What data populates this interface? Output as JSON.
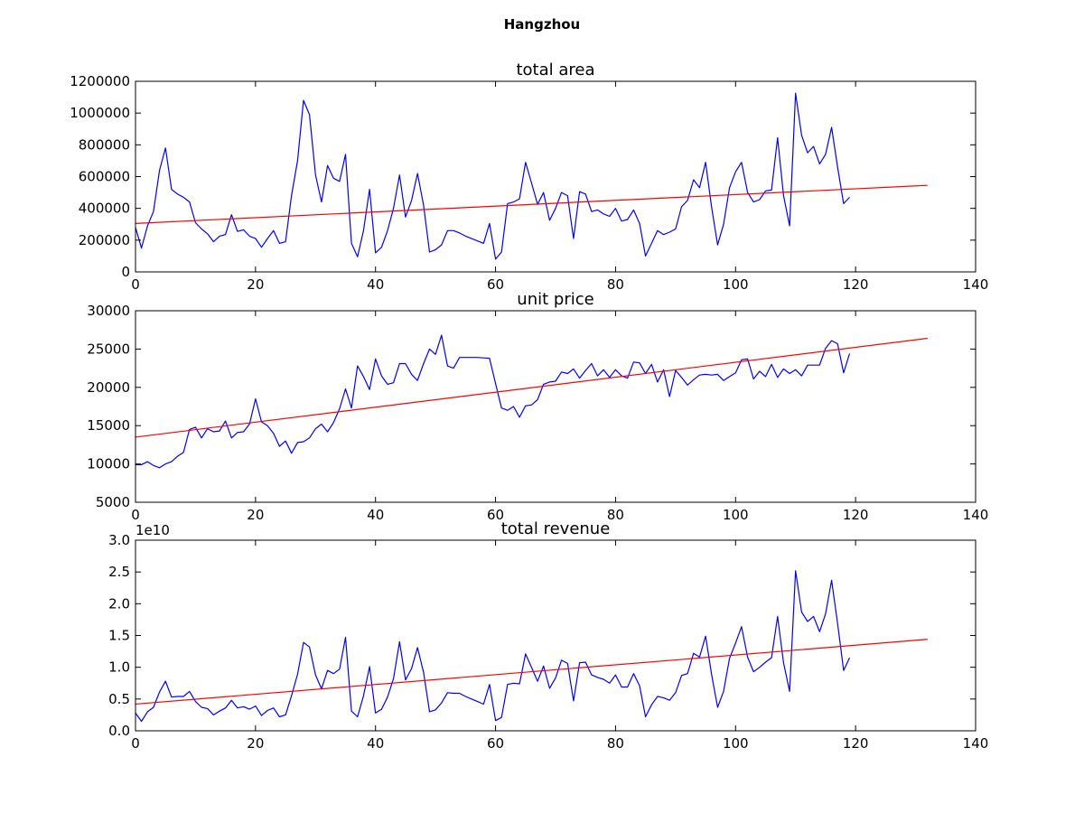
{
  "suptitle": "Hangzhou",
  "colors": {
    "series": "#0000ff",
    "trend": "#ff0000",
    "axes": "#000000"
  },
  "chart_data": [
    {
      "type": "line",
      "title": "total area",
      "xlabel": "",
      "ylabel": "",
      "xlim": [
        0,
        140
      ],
      "ylim": [
        0,
        1200000
      ],
      "xticks": [
        0,
        20,
        40,
        60,
        80,
        100,
        120,
        140
      ],
      "xtick_labels": [
        "0",
        "20",
        "40",
        "60",
        "80",
        "100",
        "120",
        "140"
      ],
      "yticks": [
        0,
        200000,
        400000,
        600000,
        800000,
        1000000,
        1200000
      ],
      "ytick_labels": [
        "0",
        "200000",
        "400000",
        "600000",
        "800000",
        "1000000",
        "1200000"
      ],
      "offset_label": "",
      "grid": false,
      "series": [
        {
          "values": [
            280000,
            150000,
            290000,
            380000,
            640000,
            780000,
            520000,
            490000,
            470000,
            440000,
            310000,
            270000,
            240000,
            190000,
            225000,
            235000,
            360000,
            255000,
            265000,
            225000,
            210000,
            155000,
            210000,
            260000,
            180000,
            190000,
            480000,
            700000,
            1080000,
            990000,
            610000,
            440000,
            670000,
            590000,
            570000,
            740000,
            180000,
            95000,
            260000,
            520000,
            120000,
            155000,
            260000,
            400000,
            610000,
            345000,
            450000,
            620000,
            420000,
            125000,
            140000,
            170000,
            260000,
            260000,
            245000,
            225000,
            210000,
            195000,
            180000,
            305000,
            80000,
            125000,
            430000,
            440000,
            460000,
            690000,
            560000,
            425000,
            500000,
            325000,
            400000,
            500000,
            480000,
            210000,
            505000,
            490000,
            380000,
            390000,
            365000,
            350000,
            400000,
            320000,
            330000,
            390000,
            305000,
            100000,
            180000,
            260000,
            235000,
            250000,
            270000,
            410000,
            450000,
            580000,
            530000,
            690000,
            410000,
            170000,
            300000,
            530000,
            630000,
            690000,
            500000,
            440000,
            455000,
            510000,
            515000,
            845000,
            480000,
            290000,
            1125000,
            860000,
            750000,
            790000,
            680000,
            740000,
            910000,
            660000,
            430000,
            470000
          ]
        }
      ],
      "trend": {
        "x": [
          0,
          132
        ],
        "y": [
          305000,
          545000
        ]
      }
    },
    {
      "type": "line",
      "title": "unit price",
      "xlabel": "",
      "ylabel": "",
      "xlim": [
        0,
        140
      ],
      "ylim": [
        5000,
        30000
      ],
      "xticks": [
        0,
        20,
        40,
        60,
        80,
        100,
        120,
        140
      ],
      "xtick_labels": [
        "0",
        "20",
        "40",
        "60",
        "80",
        "100",
        "120",
        "140"
      ],
      "yticks": [
        5000,
        10000,
        15000,
        20000,
        25000,
        30000
      ],
      "ytick_labels": [
        "5000",
        "10000",
        "15000",
        "20000",
        "25000",
        "30000"
      ],
      "offset_label": "",
      "grid": false,
      "series": [
        {
          "values": [
            9900,
            9900,
            10300,
            9800,
            9500,
            10000,
            10300,
            11000,
            11500,
            14500,
            14800,
            13400,
            14600,
            14200,
            14300,
            15600,
            13400,
            14100,
            14200,
            15200,
            18500,
            15500,
            15000,
            14000,
            12300,
            13000,
            11400,
            12800,
            12900,
            13400,
            14600,
            15200,
            14200,
            15400,
            17200,
            19800,
            17300,
            22800,
            21400,
            19700,
            23700,
            21500,
            20400,
            20600,
            23100,
            23100,
            21700,
            20900,
            23100,
            25000,
            24300,
            26800,
            22800,
            22500,
            23900,
            23900,
            23900,
            23900,
            23850,
            23800,
            20500,
            17300,
            17000,
            17500,
            16100,
            17600,
            17700,
            18400,
            20400,
            20700,
            20800,
            22000,
            21800,
            22400,
            21200,
            22200,
            23100,
            21500,
            22300,
            21300,
            22300,
            21500,
            21200,
            23300,
            23200,
            21800,
            23000,
            20700,
            22300,
            18800,
            22200,
            21300,
            20300,
            21000,
            21600,
            21700,
            21600,
            21700,
            20900,
            21400,
            21900,
            23600,
            23700,
            21100,
            22100,
            21400,
            23000,
            21300,
            22400,
            21800,
            22300,
            21500,
            22900,
            22900,
            22900,
            25100,
            26100,
            25700,
            21900,
            24400
          ]
        }
      ],
      "trend": {
        "x": [
          0,
          132
        ],
        "y": [
          13500,
          26400
        ]
      }
    },
    {
      "type": "line",
      "title": "total revenue",
      "xlabel": "",
      "ylabel": "",
      "xlim": [
        0,
        140
      ],
      "ylim": [
        0,
        3.0
      ],
      "xticks": [
        0,
        20,
        40,
        60,
        80,
        100,
        120,
        140
      ],
      "xtick_labels": [
        "0",
        "20",
        "40",
        "60",
        "80",
        "100",
        "120",
        "140"
      ],
      "yticks": [
        0,
        0.5,
        1.0,
        1.5,
        2.0,
        2.5,
        3.0
      ],
      "ytick_labels": [
        "0.0",
        "0.5",
        "1.0",
        "1.5",
        "2.0",
        "2.5",
        "3.0"
      ],
      "offset_label": "1e10",
      "grid": false,
      "series": [
        {
          "values": [
            0.28,
            0.15,
            0.3,
            0.37,
            0.61,
            0.78,
            0.53,
            0.54,
            0.54,
            0.62,
            0.46,
            0.37,
            0.35,
            0.25,
            0.31,
            0.36,
            0.48,
            0.36,
            0.38,
            0.34,
            0.39,
            0.24,
            0.32,
            0.36,
            0.22,
            0.25,
            0.55,
            0.89,
            1.39,
            1.32,
            0.88,
            0.66,
            0.95,
            0.9,
            0.97,
            1.47,
            0.31,
            0.22,
            0.55,
            1.01,
            0.28,
            0.34,
            0.53,
            0.82,
            1.4,
            0.8,
            0.98,
            1.31,
            0.92,
            0.3,
            0.33,
            0.44,
            0.6,
            0.59,
            0.59,
            0.54,
            0.5,
            0.46,
            0.42,
            0.73,
            0.16,
            0.21,
            0.73,
            0.75,
            0.74,
            1.21,
            1.0,
            0.78,
            1.02,
            0.67,
            0.83,
            1.11,
            1.06,
            0.47,
            1.07,
            1.08,
            0.88,
            0.84,
            0.81,
            0.75,
            0.88,
            0.69,
            0.69,
            0.9,
            0.71,
            0.22,
            0.41,
            0.54,
            0.52,
            0.48,
            0.6,
            0.87,
            0.9,
            1.22,
            1.16,
            1.49,
            0.89,
            0.37,
            0.62,
            1.14,
            1.38,
            1.64,
            1.16,
            0.93,
            1.0,
            1.08,
            1.15,
            1.8,
            1.07,
            0.62,
            2.52,
            1.87,
            1.72,
            1.8,
            1.56,
            1.84,
            2.37,
            1.69,
            0.95,
            1.15
          ]
        }
      ],
      "trend": {
        "x": [
          0,
          132
        ],
        "y": [
          0.42,
          1.44
        ]
      }
    }
  ]
}
